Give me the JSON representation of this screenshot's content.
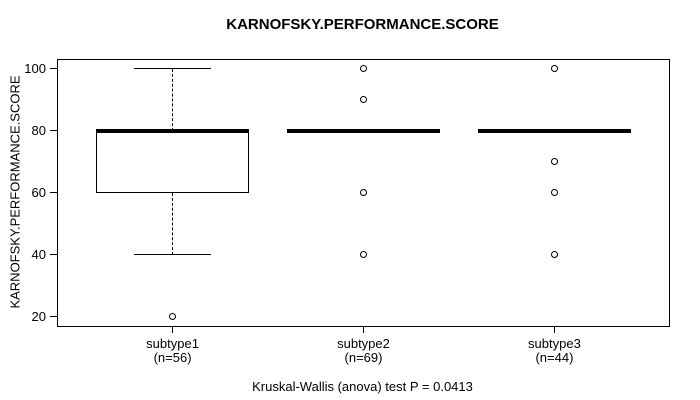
{
  "colors": {
    "foreground": "#000000",
    "background": "#ffffff"
  },
  "chart_data": {
    "type": "boxplot",
    "title": "KARNOFSKY.PERFORMANCE.SCORE",
    "ylabel": "KARNOFSKY.PERFORMANCE.SCORE",
    "xlabel": "",
    "footnote": "Kruskal-Wallis (anova) test P = 0.0413",
    "ylim": [
      16.9,
      102.9
    ],
    "xlim": [
      0.4,
      3.6
    ],
    "yticks": [
      20,
      40,
      60,
      80,
      100
    ],
    "grid": false,
    "legend": "none",
    "groups": [
      {
        "label": "subtype1",
        "n_label": "(n=56)",
        "position": 1,
        "q1": 60,
        "median": 80,
        "q3": 80,
        "whisker_low": 40,
        "whisker_high": 100,
        "outliers": [
          20
        ]
      },
      {
        "label": "subtype2",
        "n_label": "(n=69)",
        "position": 2,
        "q1": 80,
        "median": 80,
        "q3": 80,
        "whisker_low": 80,
        "whisker_high": 80,
        "outliers": [
          100,
          90,
          60,
          40
        ]
      },
      {
        "label": "subtype3",
        "n_label": "(n=44)",
        "position": 3,
        "q1": 80,
        "median": 80,
        "q3": 80,
        "whisker_low": 80,
        "whisker_high": 80,
        "outliers": [
          100,
          70,
          60,
          40
        ]
      }
    ]
  }
}
